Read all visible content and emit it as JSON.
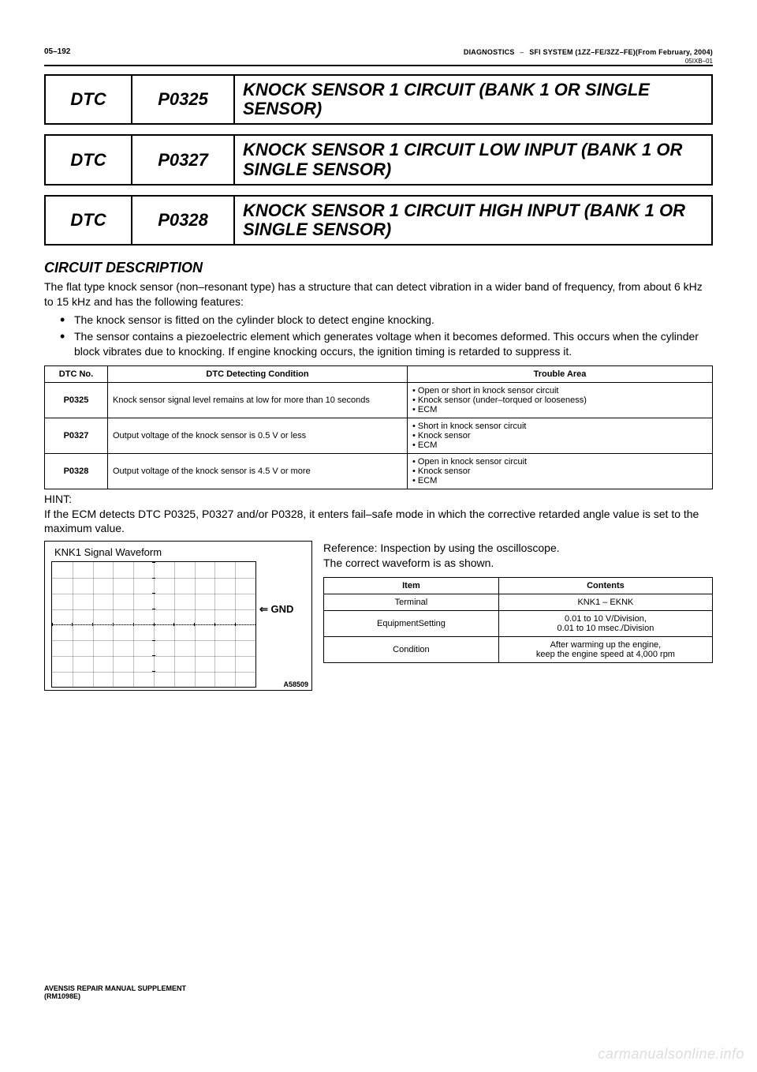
{
  "header": {
    "page_no": "05–192",
    "breadcrumb_left": "DIAGNOSTICS",
    "breadcrumb_dash": "–",
    "breadcrumb_right": "SFI SYSTEM (1ZZ–FE/3ZZ–FE)(From February, 2004)",
    "code": "05IXB–01"
  },
  "dtc_blocks": [
    {
      "label": "DTC",
      "code": "P0325",
      "title": "KNOCK SENSOR 1 CIRCUIT (BANK 1 OR SINGLE SENSOR)"
    },
    {
      "label": "DTC",
      "code": "P0327",
      "title": "KNOCK SENSOR 1 CIRCUIT LOW INPUT (BANK 1 OR SINGLE SENSOR)"
    },
    {
      "label": "DTC",
      "code": "P0328",
      "title": "KNOCK SENSOR 1 CIRCUIT HIGH INPUT (BANK 1 OR SINGLE SENSOR)"
    }
  ],
  "section": {
    "heading": "CIRCUIT DESCRIPTION",
    "intro": "The flat type knock sensor (non–resonant type) has a structure that can detect vibration in a wider band of frequency, from about 6 kHz to 15 kHz and has the following features:",
    "bullets": [
      "The knock sensor is fitted on the cylinder block to detect engine knocking.",
      "The sensor contains a piezoelectric element which generates voltage when it becomes deformed. This occurs when the cylinder block vibrates due to knocking. If engine knocking occurs, the ignition timing is retarded to suppress it."
    ]
  },
  "diag_table": {
    "headers": [
      "DTC No.",
      "DTC Detecting Condition",
      "Trouble Area"
    ],
    "rows": [
      {
        "code": "P0325",
        "condition": "Knock sensor signal level remains at low for more than 10 seconds",
        "trouble": [
          "Open or short in knock sensor circuit",
          "Knock sensor (under–torqued or looseness)",
          "ECM"
        ]
      },
      {
        "code": "P0327",
        "condition": "Output voltage of the knock sensor is 0.5 V or less",
        "trouble": [
          "Short in knock sensor circuit",
          "Knock sensor",
          "ECM"
        ]
      },
      {
        "code": "P0328",
        "condition": "Output voltage of the knock sensor is 4.5 V or more",
        "trouble": [
          "Open in knock sensor circuit",
          "Knock sensor",
          "ECM"
        ]
      }
    ]
  },
  "hint": {
    "label": "HINT:",
    "text": "If the ECM detects DTC P0325, P0327 and/or P0328, it enters fail–safe mode in which the corrective retarded angle value is set to the maximum value."
  },
  "waveform": {
    "title": "KNK1 Signal Waveform",
    "gnd_label": "GND",
    "gnd_arrow": "⇐",
    "img_code": "A58509",
    "grid": {
      "cols": 10,
      "rows": 8,
      "border_color": "#000000",
      "line_opacity": 0.25
    }
  },
  "reference": {
    "line1": "Reference: Inspection by using the oscilloscope.",
    "line2": "The correct waveform is as shown."
  },
  "osc_table": {
    "headers": [
      "Item",
      "Contents"
    ],
    "rows": [
      {
        "item": "Terminal",
        "content": "KNK1 – EKNK"
      },
      {
        "item": "EquipmentSetting",
        "content": "0.01 to 10 V/Division,\n0.01 to 10 msec./Division"
      },
      {
        "item": "Condition",
        "content": "After warming up the engine,\nkeep the engine speed at 4,000 rpm"
      }
    ]
  },
  "footer": {
    "line1": "AVENSIS REPAIR MANUAL SUPPLEMENT",
    "line2": "(RM1098E)"
  },
  "watermark": "carmanualsonline.info",
  "style": {
    "page_bg": "#ffffff",
    "text_color": "#000000",
    "watermark_color": "#dddddd"
  }
}
